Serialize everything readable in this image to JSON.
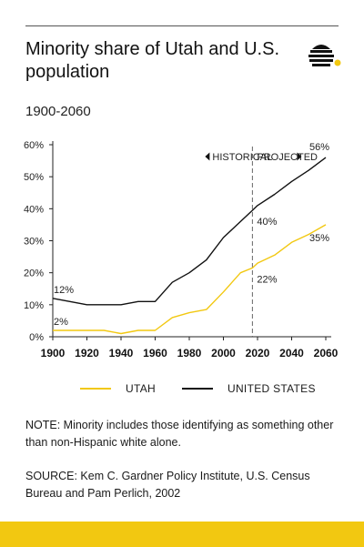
{
  "header": {
    "title": "Minority share of Utah and U.S. population",
    "subtitle": "1900-2060",
    "logo_icon": "beehive-icon",
    "logo_accent": "#f2c811"
  },
  "chart_data": {
    "type": "line",
    "x_ticks": [
      1900,
      1920,
      1940,
      1960,
      1980,
      2000,
      2020,
      2040,
      2060
    ],
    "y_ticks": [
      "0%",
      "10%",
      "20%",
      "30%",
      "40%",
      "50%",
      "60%"
    ],
    "xlim": [
      1900,
      2060
    ],
    "ylim": [
      0,
      60
    ],
    "grid": false,
    "divider_year": 2017,
    "divider_labels": {
      "left": "HISTORICAL",
      "right": "PROJECTED"
    },
    "series": [
      {
        "name": "UNITED STATES",
        "color": "#111111",
        "x": [
          1900,
          1910,
          1920,
          1930,
          1940,
          1950,
          1960,
          1970,
          1980,
          1990,
          2000,
          2010,
          2017,
          2020,
          2030,
          2040,
          2050,
          2060
        ],
        "values": [
          12,
          11,
          10,
          10,
          10,
          11,
          11,
          17,
          20,
          24,
          31,
          36,
          39.5,
          41,
          44.5,
          48.5,
          52,
          56
        ]
      },
      {
        "name": "UTAH",
        "color": "#f2c811",
        "x": [
          1900,
          1910,
          1920,
          1930,
          1940,
          1950,
          1960,
          1970,
          1980,
          1990,
          2000,
          2010,
          2017,
          2020,
          2030,
          2040,
          2050,
          2060
        ],
        "values": [
          2,
          2,
          2,
          2,
          1,
          2,
          2,
          6,
          7.5,
          8.5,
          14,
          20,
          21.5,
          23,
          25.5,
          29.5,
          32,
          35
        ]
      }
    ],
    "annotations": [
      {
        "text": "12%",
        "x": 1900,
        "y": 12,
        "series": "UNITED STATES"
      },
      {
        "text": "2%",
        "x": 1900,
        "y": 2,
        "series": "UTAH"
      },
      {
        "text": "40%",
        "x": 2017,
        "y": 39.5,
        "series": "UNITED STATES"
      },
      {
        "text": "22%",
        "x": 2017,
        "y": 21.5,
        "series": "UTAH"
      },
      {
        "text": "56%",
        "x": 2060,
        "y": 56,
        "series": "UNITED STATES"
      },
      {
        "text": "35%",
        "x": 2060,
        "y": 35,
        "series": "UTAH"
      }
    ],
    "legend": {
      "placement": "bottom"
    }
  },
  "legend": {
    "utah_label": "UTAH",
    "us_label": "UNITED STATES",
    "utah_color": "#f2c811",
    "us_color": "#111111"
  },
  "footer": {
    "note": "NOTE: Minority includes those identifying as something other than non-Hispanic white alone.",
    "source": "SOURCE: Kem C. Gardner Policy Institute, U.S. Census Bureau and Pam Perlich, 2002",
    "bar_color": "#f2c811"
  }
}
